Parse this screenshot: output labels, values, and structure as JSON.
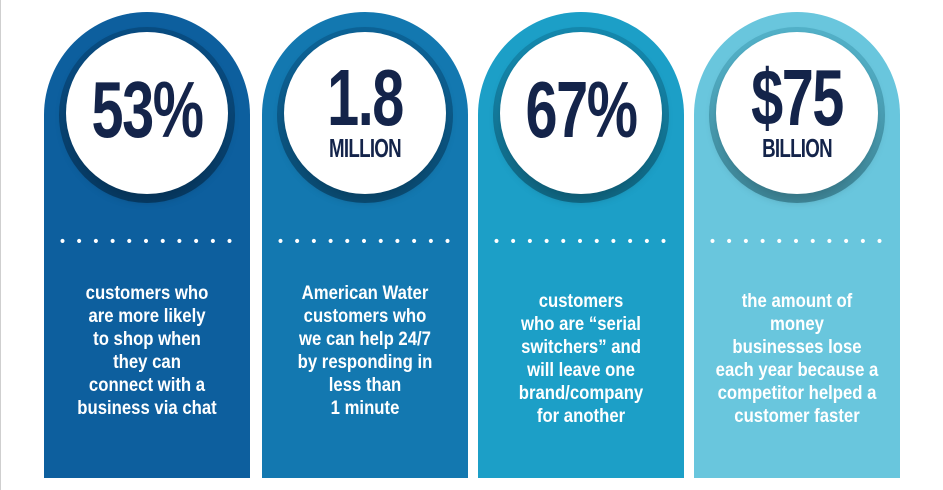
{
  "cards": [
    {
      "value": "53%",
      "unit": "",
      "dots": "• • • • • • • • • • •",
      "description": "customers who\nare more likely\nto shop when\nthey can\nconnect with a\nbusiness via chat",
      "color": "#0d5f9e"
    },
    {
      "value": "1.8",
      "unit": "MILLION",
      "dots": "• • • • • • • • • • •",
      "description": "American Water\ncustomers who\nwe can help 24/7\nby responding in\nless than\n1 minute",
      "color": "#1378b0"
    },
    {
      "value": "67%",
      "unit": "",
      "dots": "• • • • • • • • • • •",
      "description": "customers\nwho are “serial\nswitchers” and\nwill leave one\nbrand/company\nfor another",
      "color": "#1c9fc7"
    },
    {
      "value": "$75",
      "unit": "BILLION",
      "dots": "• • • • • • • • • • •",
      "description": "the amount of\nmoney\nbusinesses lose\neach year because a\ncompetitor helped a\ncustomer faster",
      "color": "#69c6dd"
    }
  ]
}
